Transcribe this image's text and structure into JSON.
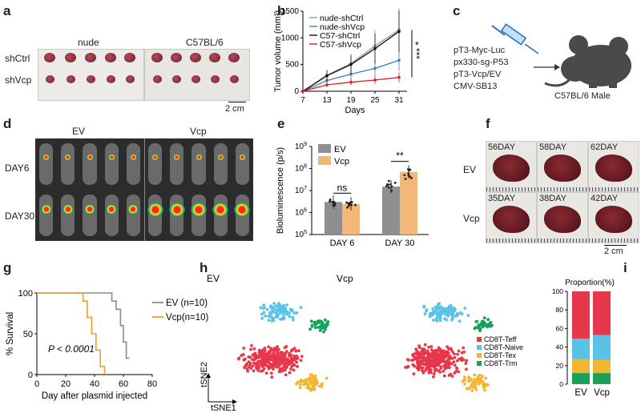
{
  "panels": {
    "a": {
      "label": "a",
      "group_nude": "nude",
      "group_c57": "C57BL/6",
      "row_ctrl": "shCtrl",
      "row_vcp": "shVcp",
      "scalebar": "2 cm"
    },
    "b": {
      "label": "b",
      "chart_data": {
        "type": "line",
        "title": "",
        "xlabel": "Days",
        "ylabel": "Tumor volume (mm³)",
        "x": [
          7,
          13,
          19,
          25,
          31
        ],
        "xlim": [
          7,
          33
        ],
        "ylim": [
          0,
          1500
        ],
        "yticks": [
          0,
          500,
          1000,
          1500
        ],
        "series": [
          {
            "name": "nude-shCtrl",
            "color": "#999999",
            "values": [
              0,
              300,
              520,
              850,
              1150
            ]
          },
          {
            "name": "nude-shVcp",
            "color": "#3a7fc1",
            "values": [
              0,
              200,
              320,
              430,
              580
            ]
          },
          {
            "name": "C57-shCtrl",
            "color": "#111111",
            "values": [
              0,
              290,
              500,
              800,
              1120
            ]
          },
          {
            "name": "C57-shVcp",
            "color": "#e31a1c",
            "values": [
              0,
              120,
              170,
              210,
              260
            ]
          }
        ],
        "annotations": [
          "*",
          "***"
        ]
      }
    },
    "c": {
      "label": "c",
      "plasmids": [
        "pT3-Myc-Luc",
        "px330-sg-P53",
        "pT3-Vcp/EV",
        "CMV-SB13"
      ],
      "caption": "C57BL/6 Male"
    },
    "d": {
      "label": "d",
      "col_ev": "EV",
      "col_vcp": "Vcp",
      "row_day6": "DAY6",
      "row_day30": "DAY30"
    },
    "e": {
      "label": "e",
      "chart_data": {
        "type": "bar",
        "categories": [
          "DAY 6",
          "DAY 30"
        ],
        "ylabel": "Bioluminescence (p/s)",
        "yscale": "log",
        "ylim_exp": [
          5,
          9
        ],
        "yticks": [
          "10^5",
          "10^6",
          "10^7",
          "10^8",
          "10^9"
        ],
        "series": [
          {
            "name": "EV",
            "color": "#8f8f8f",
            "values": [
              3000000,
              15000000
            ]
          },
          {
            "name": "Vcp",
            "color": "#f3b77a",
            "values": [
              2500000,
              70000000
            ]
          }
        ],
        "significance": [
          "ns",
          "**"
        ]
      }
    },
    "f": {
      "label": "f",
      "row_ev": "EV",
      "row_vcp": "Vcp",
      "days_ev": [
        "56DAY",
        "58DAY",
        "62DAY"
      ],
      "days_vcp": [
        "35DAY",
        "38DAY",
        "42DAY"
      ],
      "scalebar": "2 cm"
    },
    "g": {
      "label": "g",
      "chart_data": {
        "type": "line",
        "xlabel": "Day after plasmid injected",
        "ylabel": "% Survival",
        "xlim": [
          0,
          80
        ],
        "ylim": [
          0,
          100
        ],
        "xticks": [
          0,
          20,
          40,
          60,
          80
        ],
        "yticks": [
          0,
          50,
          100
        ],
        "pvalue": "P < 0.0001",
        "series": [
          {
            "name": "EV (n=10)",
            "color": "#8c8c8c",
            "x": [
              0,
              52,
              55,
              58,
              60,
              62,
              64
            ],
            "values": [
              100,
              90,
              80,
              60,
              40,
              20,
              20
            ]
          },
          {
            "name": "Vcp(n=10)",
            "color": "#f39c1f",
            "x": [
              0,
              32,
              35,
              38,
              41,
              44,
              47
            ],
            "values": [
              100,
              90,
              70,
              50,
              30,
              10,
              0
            ]
          }
        ]
      }
    },
    "h": {
      "label": "h",
      "title_ev": "EV",
      "title_vcp": "Vcp",
      "axis_x": "tSNE1",
      "axis_y": "tSNE2",
      "legend": [
        {
          "name": "CD8T-Teff",
          "color": "#e8364a"
        },
        {
          "name": "CD8T-Naive",
          "color": "#5bc2e7"
        },
        {
          "name": "CD8T-Tex",
          "color": "#f2b630"
        },
        {
          "name": "CD8T-Trm",
          "color": "#1aa05a"
        }
      ]
    },
    "i": {
      "label": "i",
      "chart_data": {
        "type": "bar",
        "stacked": true,
        "title": "Proportion(%)",
        "categories": [
          "EV",
          "Vcp"
        ],
        "ylim": [
          0,
          100
        ],
        "yticks": [
          0,
          20,
          40,
          60,
          80,
          100
        ],
        "series": [
          {
            "name": "CD8T-Trm",
            "color": "#1aa05a",
            "values": [
              12,
              12
            ]
          },
          {
            "name": "CD8T-Tex",
            "color": "#f2b630",
            "values": [
              15,
              14
            ]
          },
          {
            "name": "CD8T-Naive",
            "color": "#5bc2e7",
            "values": [
              22,
              27
            ]
          },
          {
            "name": "CD8T-Teff",
            "color": "#e8364a",
            "values": [
              51,
              47
            ]
          }
        ]
      }
    }
  }
}
